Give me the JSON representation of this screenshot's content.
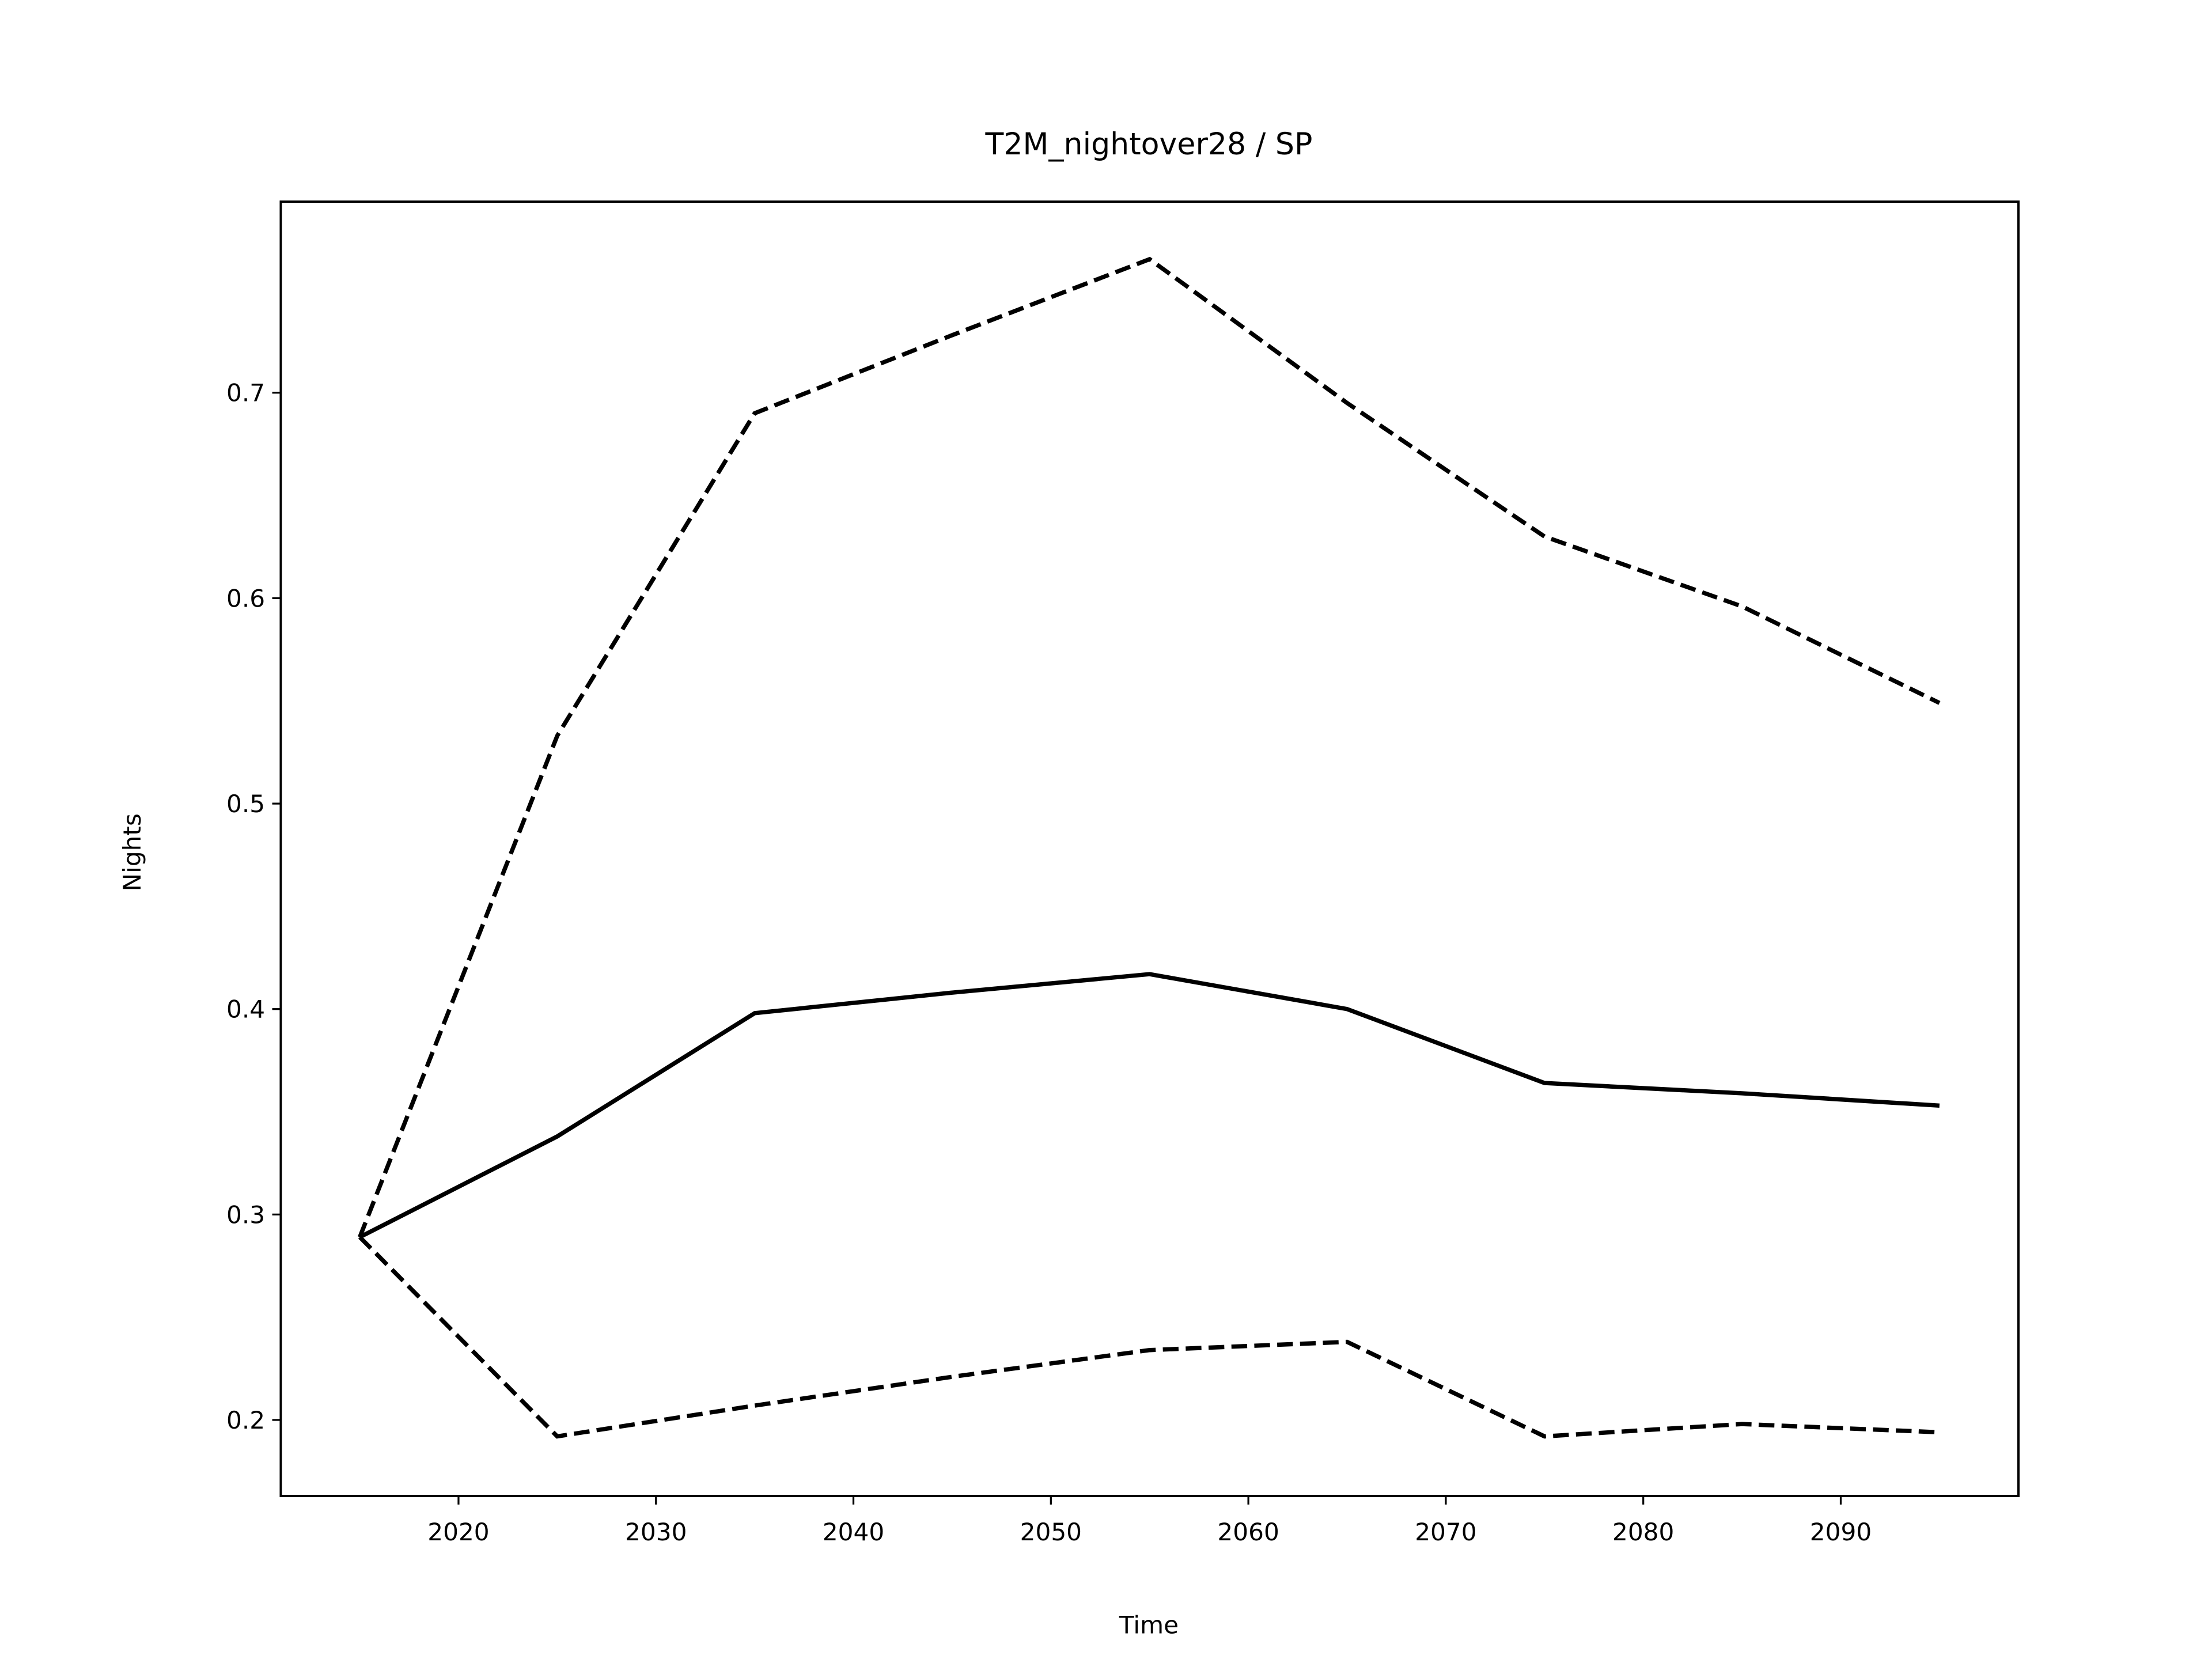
{
  "chart_data": {
    "type": "line",
    "title": "T2M_nightover28 / SP",
    "x_label": "Time",
    "y_label": "Nights",
    "x": [
      2015,
      2025,
      2035,
      2045,
      2055,
      2065,
      2075,
      2085,
      2095
    ],
    "series": [
      {
        "color": "#000000",
        "linestyle": "dashed",
        "values": [
          0.289,
          0.533,
          0.69,
          0.728,
          0.765,
          0.695,
          0.63,
          0.596,
          0.549
        ]
      },
      {
        "color": "#000000",
        "linestyle": "solid",
        "values": [
          0.289,
          0.338,
          0.398,
          0.408,
          0.417,
          0.4,
          0.364,
          0.359,
          0.353
        ]
      },
      {
        "color": "#000000",
        "linestyle": "dashed",
        "values": [
          0.289,
          0.192,
          0.207,
          0.221,
          0.234,
          0.238,
          0.192,
          0.198,
          0.194
        ]
      }
    ],
    "xlim": [
      2011,
      2099
    ],
    "xticks": [
      2020,
      2030,
      2040,
      2050,
      2060,
      2070,
      2080,
      2090
    ],
    "ylim": [
      0.163,
      0.793
    ],
    "yticks": [
      0.2,
      0.3,
      0.4,
      0.5,
      0.6,
      0.7
    ]
  }
}
